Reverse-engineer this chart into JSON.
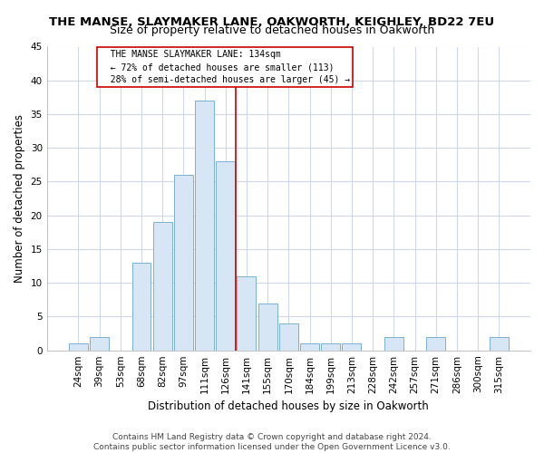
{
  "title": "THE MANSE, SLAYMAKER LANE, OAKWORTH, KEIGHLEY, BD22 7EU",
  "subtitle": "Size of property relative to detached houses in Oakworth",
  "xlabel": "Distribution of detached houses by size in Oakworth",
  "ylabel": "Number of detached properties",
  "bar_labels": [
    "24sqm",
    "39sqm",
    "53sqm",
    "68sqm",
    "82sqm",
    "97sqm",
    "111sqm",
    "126sqm",
    "141sqm",
    "155sqm",
    "170sqm",
    "184sqm",
    "199sqm",
    "213sqm",
    "228sqm",
    "242sqm",
    "257sqm",
    "271sqm",
    "286sqm",
    "300sqm",
    "315sqm"
  ],
  "bar_values": [
    1,
    2,
    0,
    13,
    19,
    26,
    37,
    28,
    11,
    7,
    4,
    1,
    1,
    1,
    0,
    2,
    0,
    2,
    0,
    0,
    2
  ],
  "bar_color": "#d6e6f5",
  "bar_edge_color": "#7ab0d4",
  "vline_x": 7.5,
  "vline_color": "#cc0000",
  "annotation_text": "  THE MANSE SLAYMAKER LANE: 134sqm\n  ← 72% of detached houses are smaller (113)\n  28% of semi-detached houses are larger (45) →",
  "annotation_box_color": "#ffffff",
  "annotation_box_edge_color": "#cc0000",
  "ylim": [
    0,
    45
  ],
  "yticks": [
    0,
    5,
    10,
    15,
    20,
    25,
    30,
    35,
    40,
    45
  ],
  "title_fontsize": 9.5,
  "subtitle_fontsize": 9,
  "xlabel_fontsize": 8.5,
  "ylabel_fontsize": 8.5,
  "tick_fontsize": 7.5,
  "annotation_fontsize": 7,
  "footer_text": "Contains HM Land Registry data © Crown copyright and database right 2024.\nContains public sector information licensed under the Open Government Licence v3.0.",
  "footer_fontsize": 6.5,
  "background_color": "#ffffff",
  "grid_color": "#d0d8e8"
}
